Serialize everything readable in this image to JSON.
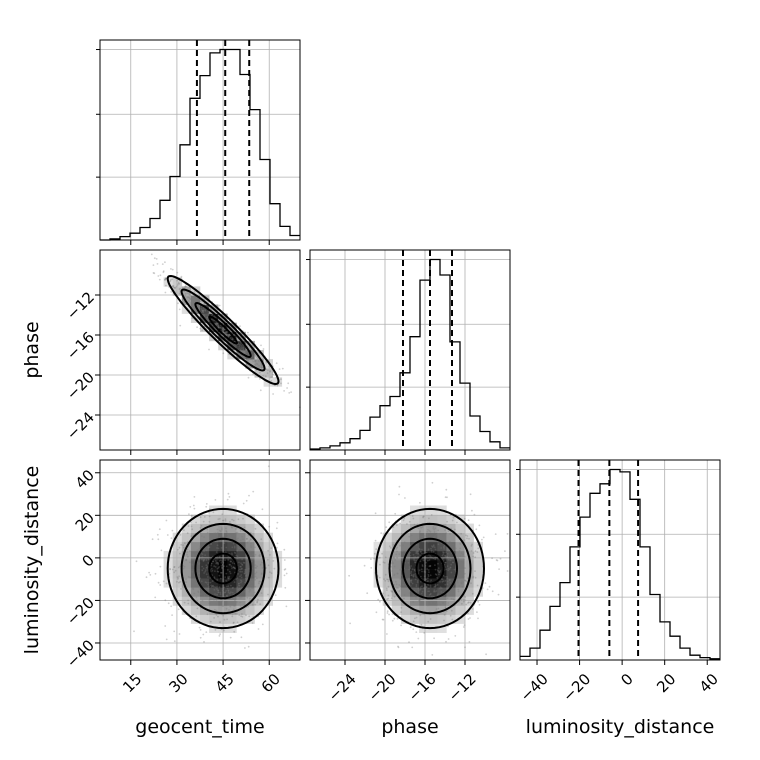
{
  "chart_data": {
    "type": "corner",
    "parameters": [
      {
        "key": "geocent_time",
        "label": "geocent_time",
        "range": [
          5,
          70
        ],
        "ticks": [
          15,
          30,
          45,
          60
        ],
        "mean": 45,
        "std": 9,
        "quantiles": [
          36.5,
          45.7,
          53.5
        ]
      },
      {
        "key": "phase",
        "label": "phase",
        "range": [
          -27.5,
          -7.5
        ],
        "ticks": [
          -24,
          -20,
          -16,
          -12
        ],
        "mean": -15.5,
        "std": 2.7,
        "quantiles": [
          -18.2,
          -15.5,
          -13.3
        ]
      },
      {
        "key": "luminosity_distance",
        "label": "luminosity_distance",
        "range": [
          -48,
          46
        ],
        "ticks": [
          -40,
          -20,
          0,
          20,
          40
        ],
        "mean": -5,
        "std": 14,
        "quantiles": [
          -20.5,
          -6,
          7.5
        ]
      }
    ],
    "correlations": {
      "geocent_time|phase": -0.95,
      "geocent_time|luminosity_distance": 0,
      "phase|luminosity_distance": 0
    },
    "histograms": {
      "geocent_time": {
        "edges": [
          5,
          8.25,
          11.5,
          14.75,
          18,
          21.25,
          24.5,
          27.75,
          31,
          34.25,
          37.5,
          40.75,
          44,
          47.25,
          50.5,
          53.75,
          57,
          60.25,
          63.5,
          66.75,
          70
        ],
        "counts": [
          0,
          1,
          3,
          6,
          11,
          19,
          35,
          56,
          84,
          125,
          145,
          165,
          168,
          168,
          146,
          115,
          71,
          32,
          12,
          4
        ]
      },
      "phase": {
        "edges": [
          -27.5,
          -26.5,
          -25.5,
          -24.5,
          -23.5,
          -22.5,
          -21.5,
          -20.5,
          -19.5,
          -18.5,
          -17.5,
          -16.5,
          -15.5,
          -14.5,
          -13.5,
          -12.5,
          -11.5,
          -10.5,
          -9.5,
          -8.5,
          -7.5
        ],
        "counts": [
          1,
          2,
          4,
          7,
          11,
          19,
          32,
          43,
          52,
          75,
          110,
          165,
          185,
          170,
          105,
          65,
          33,
          18,
          8,
          2
        ]
      },
      "luminosity_distance": {
        "edges": [
          -48,
          -43.3,
          -38.6,
          -33.9,
          -29.2,
          -24.5,
          -19.8,
          -15.1,
          -10.4,
          -5.7,
          -1,
          3.7,
          8.4,
          13.1,
          17.8,
          22.5,
          27.2,
          31.9,
          36.6,
          41.3,
          46
        ],
        "counts": [
          3,
          10,
          25,
          45,
          65,
          95,
          120,
          140,
          148,
          160,
          158,
          135,
          95,
          55,
          32,
          20,
          10,
          4,
          2,
          1
        ]
      }
    },
    "quantile_levels": [
      0.16,
      0.5,
      0.84
    ],
    "contour_levels": [
      0.118,
      0.393,
      0.675,
      0.865
    ],
    "grid": true,
    "colors": {
      "line": "#000000",
      "samples": "#777777",
      "grid": "#b0b0b0"
    }
  }
}
